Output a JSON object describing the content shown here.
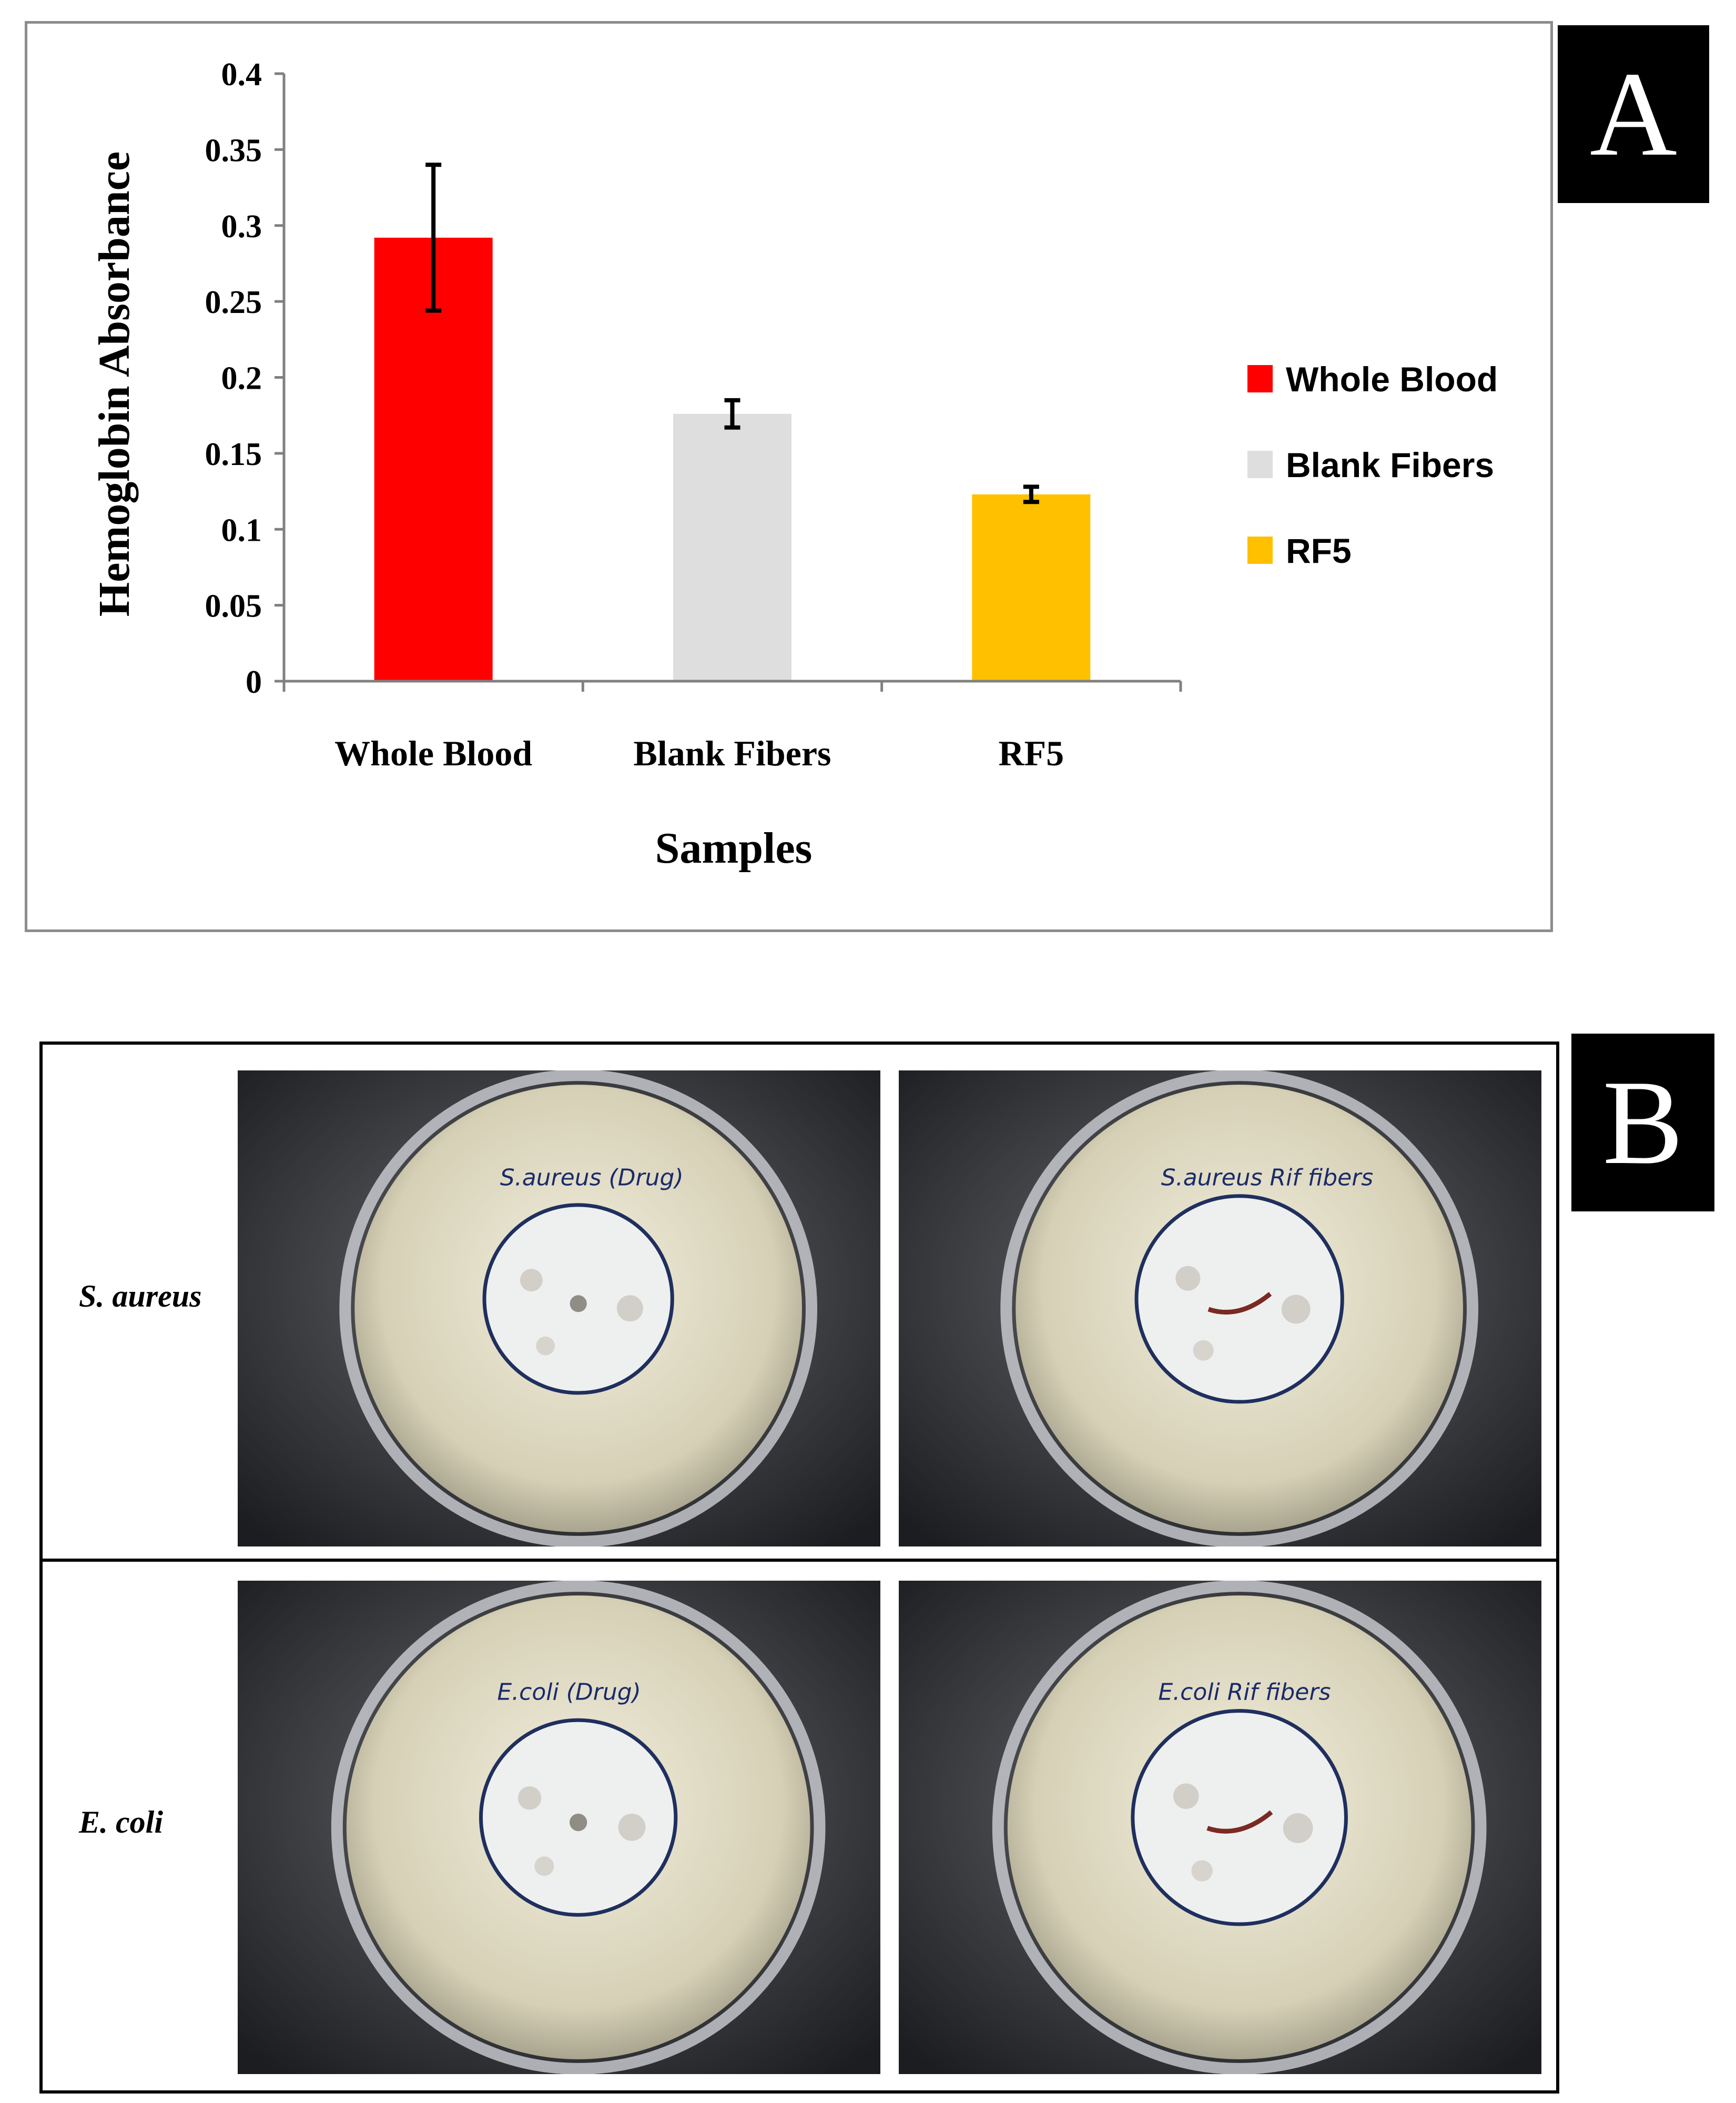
{
  "panels": {
    "a": "A",
    "b": "B"
  },
  "chart_data": {
    "type": "bar",
    "categories": [
      "Whole Blood",
      "Blank Fibers",
      "RF5"
    ],
    "values": [
      0.292,
      0.176,
      0.123
    ],
    "errors": [
      0.048,
      0.009,
      0.005
    ],
    "colors": [
      "#ff0000",
      "#dedede",
      "#ffc000"
    ],
    "xlabel": "Samples",
    "ylabel": "Hemoglobin Absorbance",
    "ylim": [
      0,
      0.4
    ],
    "yticks": [
      "0",
      "0.05",
      "0.1",
      "0.15",
      "0.2",
      "0.25",
      "0.3",
      "0.35",
      "0.4"
    ],
    "legend": [
      "Whole Blood",
      "Blank Fibers",
      "RF5"
    ],
    "legend_position": "right",
    "grid": false
  },
  "photos": {
    "rows": [
      {
        "label": "S. aureus"
      },
      {
        "label": "E. coli"
      }
    ],
    "plates": [
      {
        "text": "S.aureus (Drug)"
      },
      {
        "text": "S.aureus Rif fibers"
      },
      {
        "text": "E.coli (Drug)"
      },
      {
        "text": "E.coli Rif fibers"
      }
    ]
  }
}
